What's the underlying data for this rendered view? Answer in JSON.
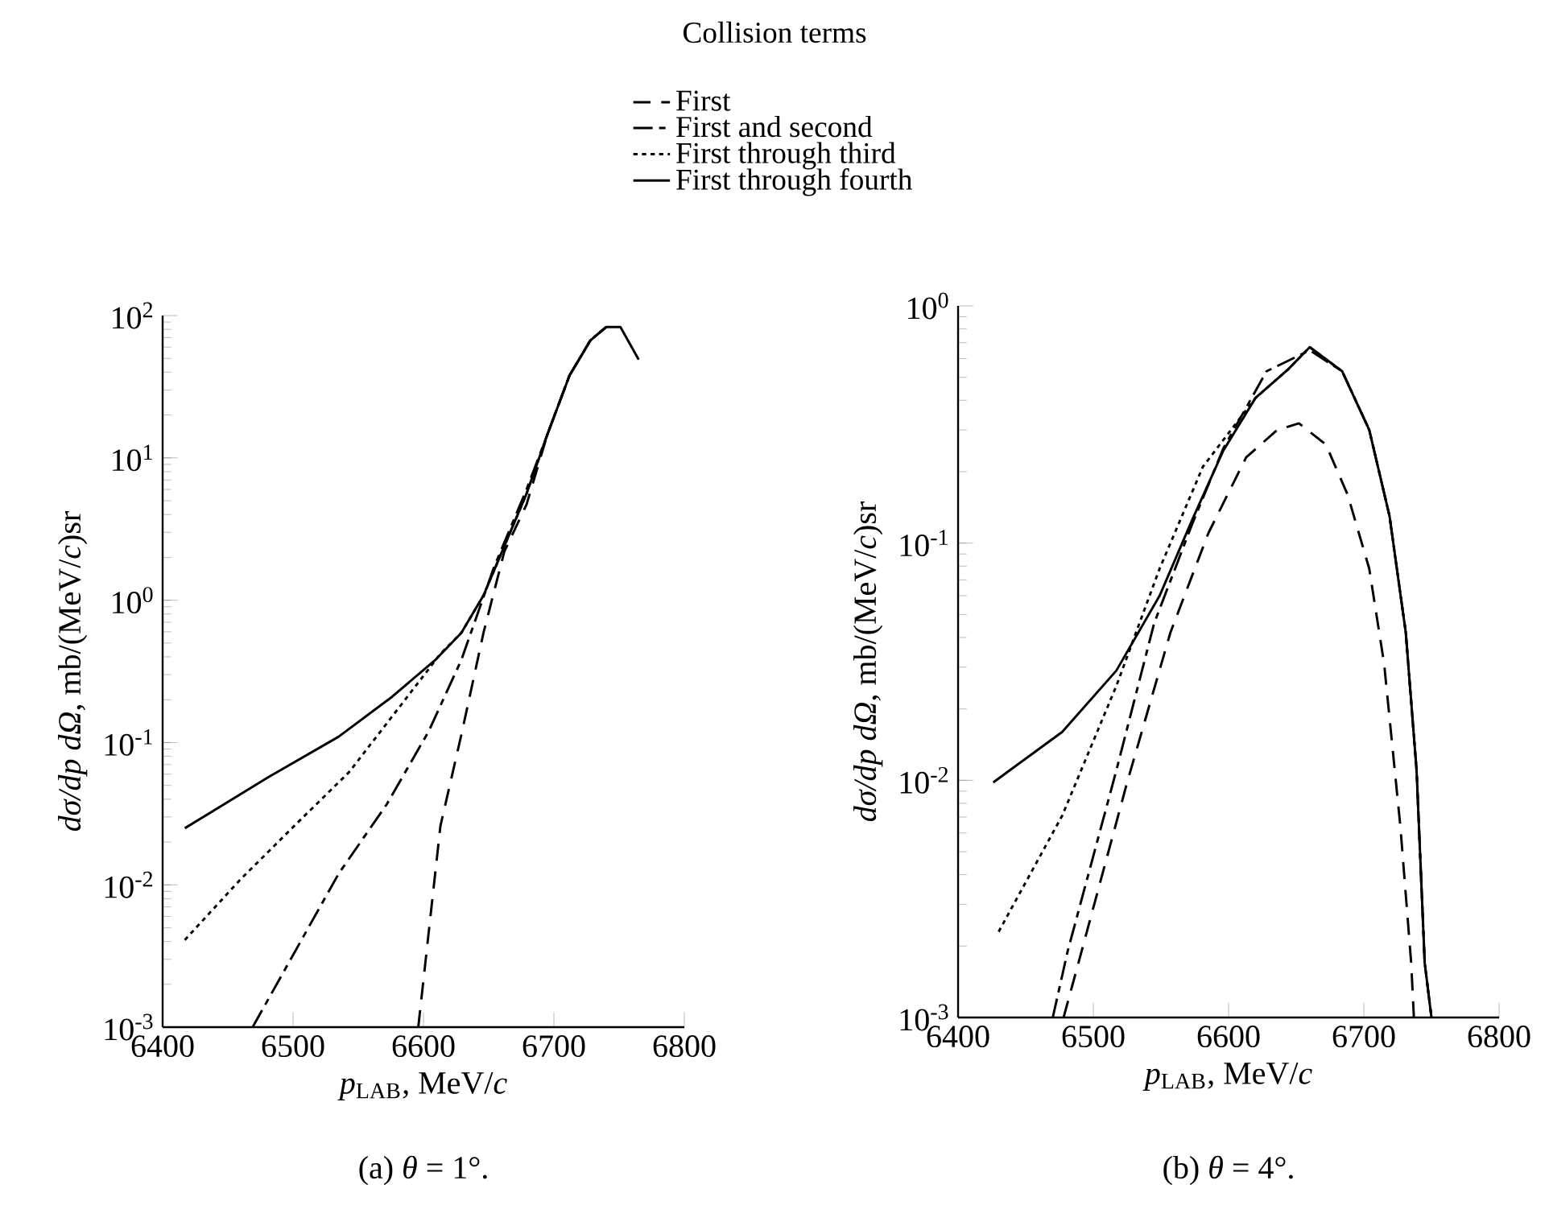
{
  "chart_data": [
    {
      "type": "line",
      "title": "(a) *θ* = 1°.",
      "xlabel": "*p*$_{LAB}$, MeV/*c*",
      "ylabel": "*dσ/dp dΩ*, mb/(MeV/*c*)sr",
      "legend_title": "Collision terms",
      "legend": "top",
      "log": "y",
      "xlim": [
        6400,
        6800
      ],
      "xticks": [
        6400,
        6500,
        6600,
        6700,
        6800
      ],
      "ylim": [
        0.001,
        100
      ],
      "yticks": [
        {
          "value": 0.001,
          "label": "10$^{-3}$"
        },
        {
          "value": 0.01,
          "label": "10$^{-2}$"
        },
        {
          "value": 0.1,
          "label": "10$^{-1}$"
        },
        {
          "value": 1,
          "label": "10$^{0}$"
        },
        {
          "value": 10,
          "label": "10$^{1}$"
        },
        {
          "value": 100,
          "label": "10$^{2}$"
        }
      ],
      "series": [
        {
          "name": "First",
          "color": "#000000",
          "line_style": "dashed",
          "x": [
            6596,
            6613,
            6629,
            6646,
            6662,
            6679,
            6695,
            6712,
            6728,
            6740
          ],
          "values": [
            0.001,
            0.026,
            0.113,
            0.59,
            2.2,
            4.7,
            14.6,
            38,
            67,
            83
          ]
        },
        {
          "name": "First and second",
          "color": "#000000",
          "line_style": "dashdot",
          "x": [
            6469,
            6535,
            6572,
            6604,
            6629,
            6654,
            6679,
            6695,
            6712,
            6728,
            6740
          ],
          "values": [
            0.001,
            0.012,
            0.037,
            0.12,
            0.38,
            1.7,
            6,
            14.6,
            38,
            67,
            83
          ]
        },
        {
          "name": "First through third",
          "color": "#000000",
          "line_style": "dotted",
          "x": [
            6417,
            6460,
            6501,
            6543,
            6584,
            6613,
            6629,
            6646,
            6662,
            6679,
            6695,
            6712,
            6728,
            6740
          ],
          "values": [
            0.0041,
            0.011,
            0.026,
            0.062,
            0.19,
            0.42,
            0.59,
            1.08,
            2.4,
            5.6,
            14.6,
            38,
            67,
            83
          ]
        },
        {
          "name": "First through fourth",
          "color": "#000000",
          "line_style": "solid",
          "x": [
            6417,
            6481,
            6535,
            6576,
            6609,
            6629,
            6646,
            6662,
            6679,
            6695,
            6712,
            6728,
            6740,
            6751,
            6765
          ],
          "values": [
            0.025,
            0.057,
            0.11,
            0.21,
            0.38,
            0.59,
            1.08,
            2.4,
            5.6,
            14.6,
            38,
            67,
            83,
            83,
            49
          ]
        }
      ]
    },
    {
      "type": "line",
      "title": "(b) *θ* = 4°.",
      "xlabel": "*p*$_{LAB}$, MeV/*c*",
      "ylabel": "*dσ/dp dΩ*, mb/(MeV/*c*)sr",
      "log": "y",
      "xlim": [
        6400,
        6800
      ],
      "xticks": [
        6400,
        6500,
        6600,
        6700,
        6800
      ],
      "ylim": [
        0.001,
        1
      ],
      "yticks": [
        {
          "value": 0.001,
          "label": "10$^{-3}$"
        },
        {
          "value": 0.01,
          "label": "10$^{-2}$"
        },
        {
          "value": 0.1,
          "label": "10$^{-1}$"
        },
        {
          "value": 1,
          "label": "10$^{0}$"
        }
      ],
      "series": [
        {
          "color": "#000000",
          "line_style": "dashed",
          "x": [
            6478,
            6489,
            6525,
            6557,
            6585,
            6613,
            6636,
            6652,
            6672,
            6688,
            6704,
            6715,
            6727,
            6735,
            6737
          ],
          "values": [
            0.001,
            0.0017,
            0.0098,
            0.042,
            0.11,
            0.23,
            0.3,
            0.32,
            0.26,
            0.16,
            0.078,
            0.031,
            0.0064,
            0.0017,
            0.001
          ]
        },
        {
          "color": "#000000",
          "line_style": "dashdot",
          "x": [
            6470,
            6481,
            6517,
            6545,
            6573,
            6596,
            6628,
            6660,
            6684,
            6704,
            6719,
            6731,
            6739,
            6745,
            6750
          ],
          "values": [
            0.001,
            0.0019,
            0.011,
            0.046,
            0.12,
            0.25,
            0.53,
            0.65,
            0.53,
            0.3,
            0.13,
            0.042,
            0.011,
            0.0017,
            0.001
          ]
        },
        {
          "color": "#000000",
          "line_style": "dotted",
          "x": [
            6430,
            6477,
            6517,
            6549,
            6581,
            6620,
            6644,
            6660,
            6684,
            6704,
            6719,
            6731,
            6739,
            6745,
            6750
          ],
          "values": [
            0.0023,
            0.0071,
            0.025,
            0.078,
            0.21,
            0.41,
            0.54,
            0.67,
            0.53,
            0.3,
            0.13,
            0.042,
            0.011,
            0.0017,
            0.001
          ]
        },
        {
          "color": "#000000",
          "line_style": "solid",
          "x": [
            6426,
            6477,
            6517,
            6549,
            6573,
            6596,
            6620,
            6644,
            6660,
            6684,
            6704,
            6719,
            6731,
            6739,
            6745,
            6750
          ],
          "values": [
            0.0098,
            0.016,
            0.029,
            0.06,
            0.125,
            0.245,
            0.41,
            0.54,
            0.67,
            0.53,
            0.3,
            0.13,
            0.042,
            0.011,
            0.0017,
            0.001
          ]
        }
      ]
    }
  ]
}
